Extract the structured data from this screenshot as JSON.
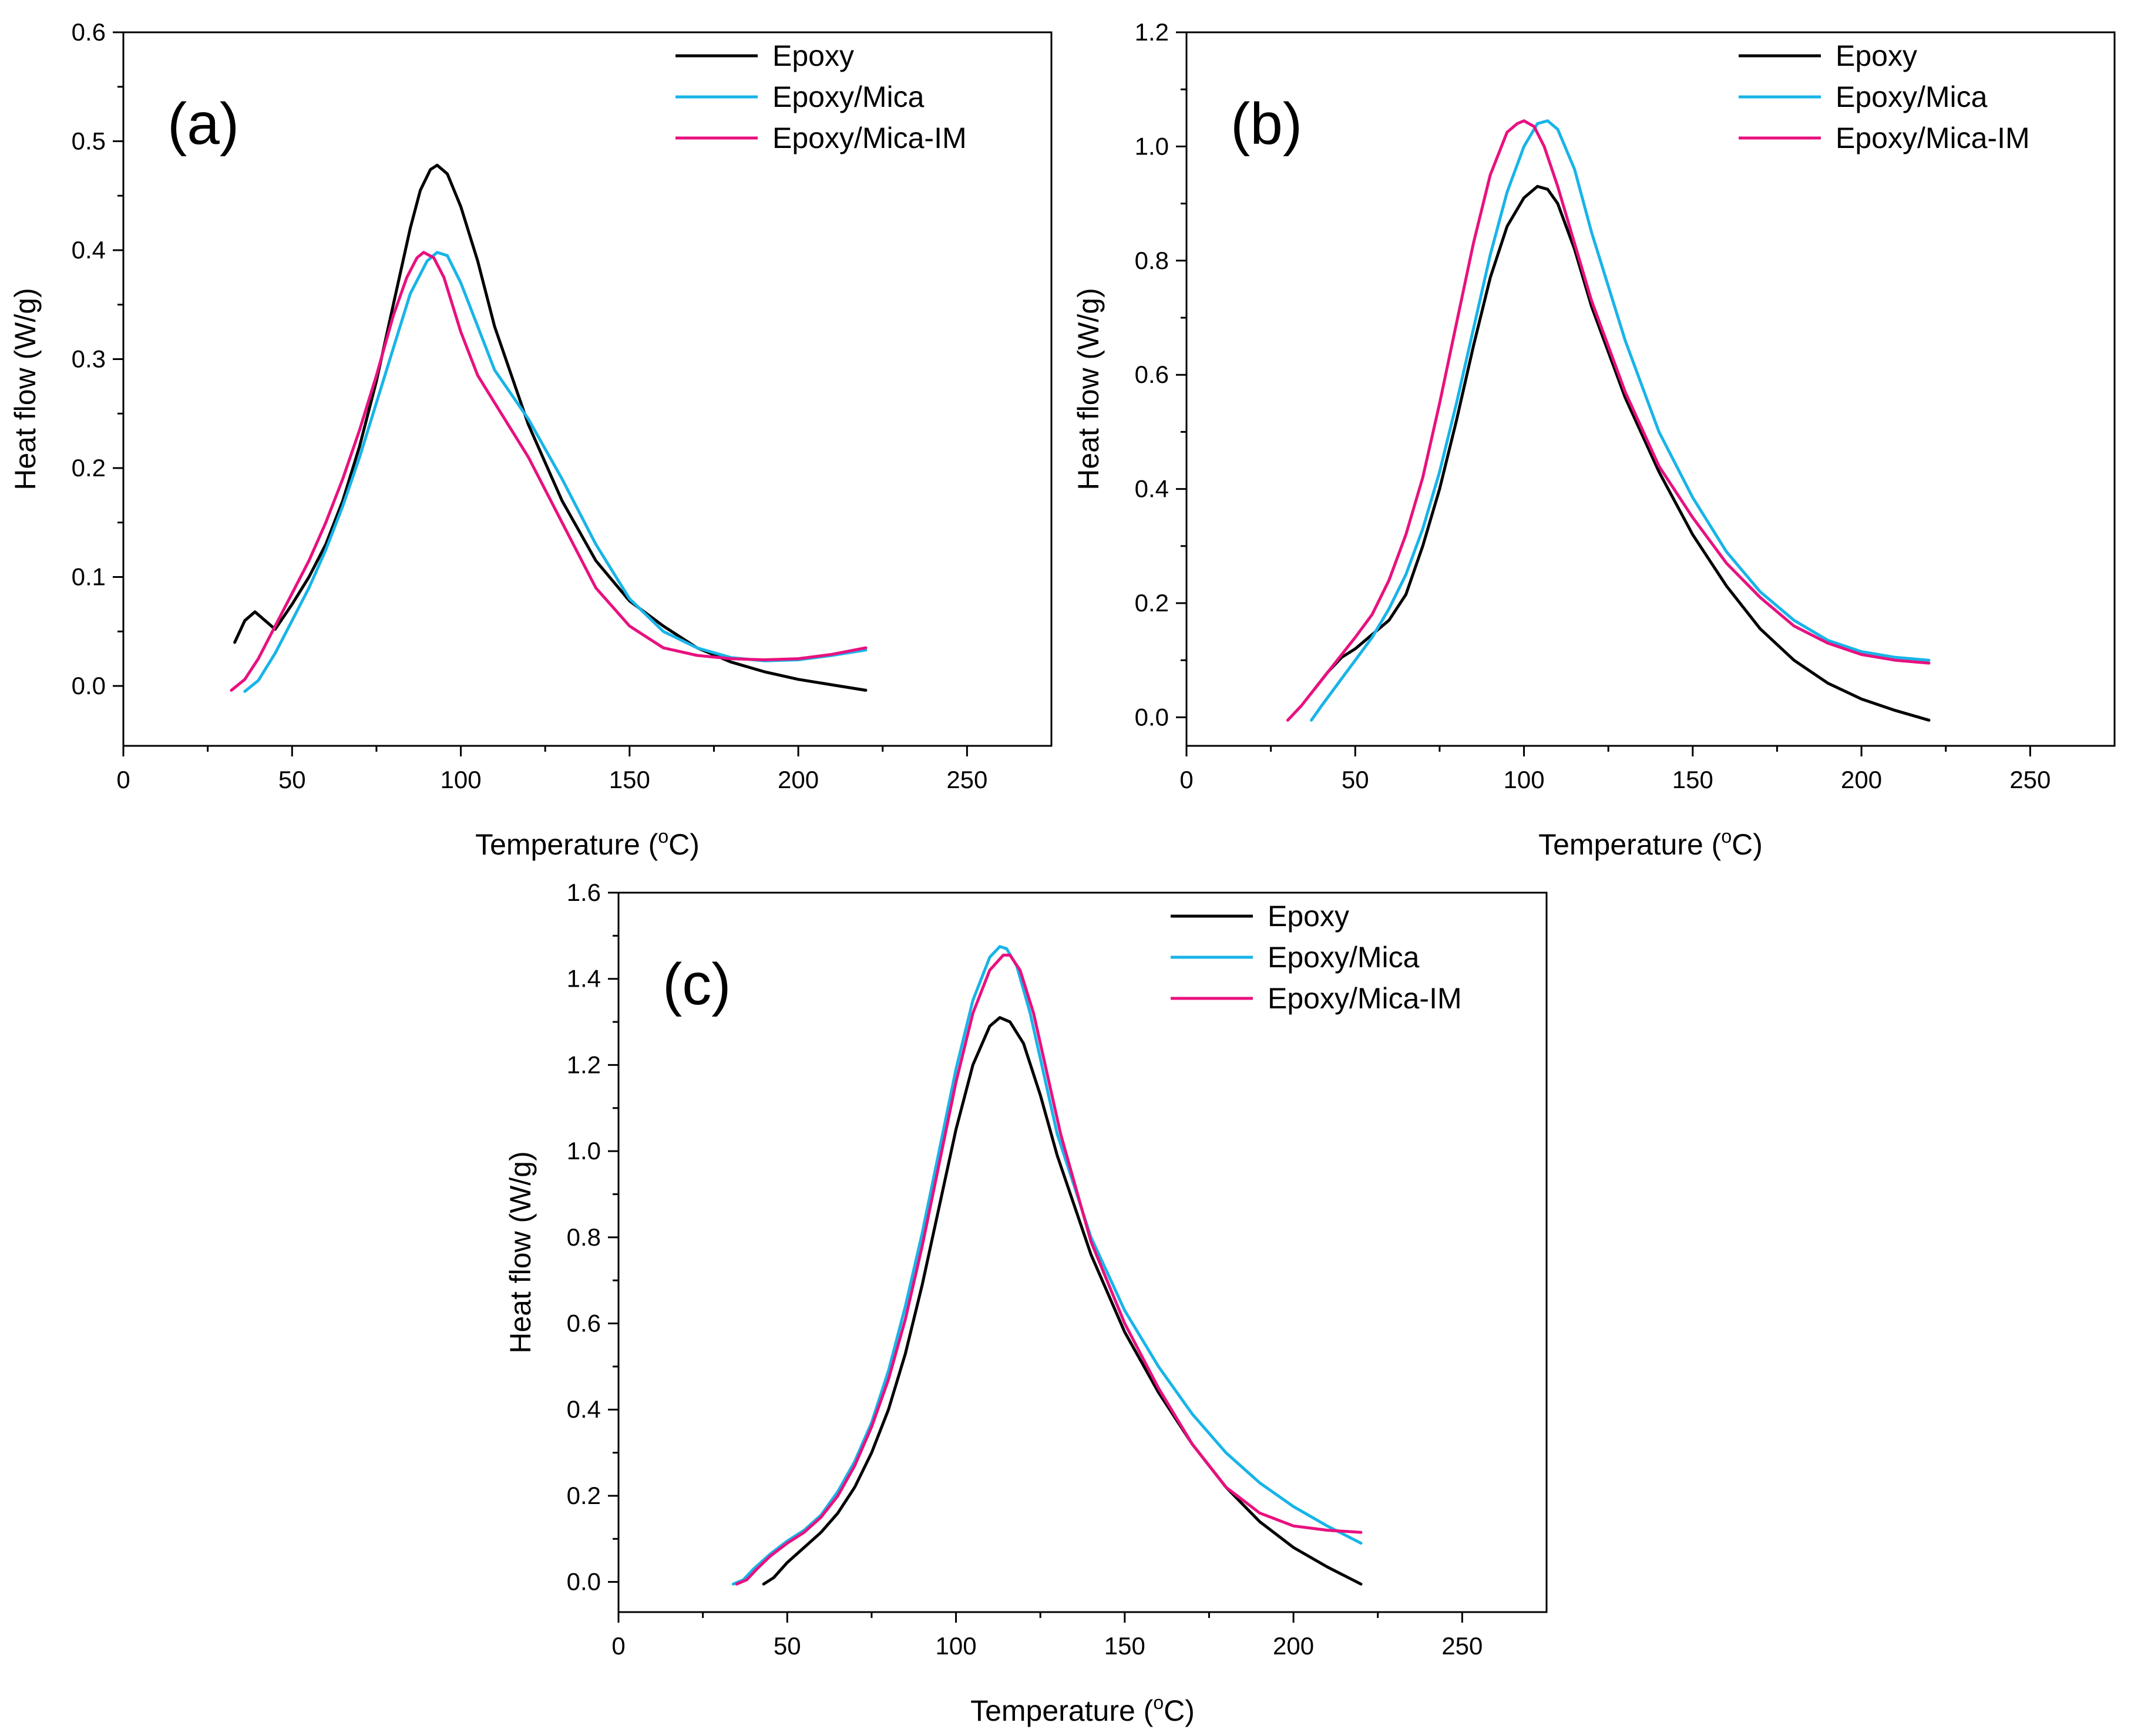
{
  "chart_data": [
    {
      "type": "line",
      "panel_label": "(a)",
      "xlabel": "Temperature (",
      "xlabel_sup": "o",
      "xlabel_end": "C)",
      "ylabel": "Heat flow (W/g)",
      "xlim": [
        0,
        275
      ],
      "ylim": [
        -0.055,
        0.6
      ],
      "xticks": [
        0,
        50,
        100,
        150,
        200,
        250
      ],
      "yticks": [
        0.0,
        0.1,
        0.2,
        0.3,
        0.4,
        0.5,
        0.6
      ],
      "ytick_labels": [
        "0.0",
        "0.1",
        "0.2",
        "0.3",
        "0.4",
        "0.5",
        "0.6"
      ],
      "xtick_labels": [
        "0",
        "50",
        "100",
        "150",
        "200",
        "250"
      ],
      "legend": "top-right",
      "series": [
        {
          "name": "Epoxy",
          "color": "#000000",
          "x": [
            33,
            36,
            39,
            42,
            45,
            50,
            55,
            60,
            65,
            70,
            75,
            80,
            85,
            88,
            91,
            93,
            96,
            100,
            105,
            110,
            120,
            130,
            140,
            150,
            160,
            170,
            180,
            190,
            200,
            210,
            220
          ],
          "y": [
            0.04,
            0.06,
            0.068,
            0.06,
            0.052,
            0.075,
            0.1,
            0.13,
            0.17,
            0.22,
            0.28,
            0.35,
            0.42,
            0.455,
            0.474,
            0.478,
            0.47,
            0.44,
            0.39,
            0.33,
            0.24,
            0.17,
            0.115,
            0.078,
            0.055,
            0.035,
            0.022,
            0.013,
            0.006,
            0.001,
            -0.004
          ]
        },
        {
          "name": "Epoxy/Mica",
          "color": "#18b4e8",
          "x": [
            36,
            40,
            45,
            50,
            55,
            60,
            65,
            70,
            75,
            80,
            85,
            90,
            93,
            96,
            100,
            105,
            110,
            120,
            130,
            140,
            150,
            160,
            170,
            180,
            190,
            200,
            210,
            220
          ],
          "y": [
            -0.005,
            0.005,
            0.03,
            0.06,
            0.09,
            0.125,
            0.165,
            0.21,
            0.26,
            0.31,
            0.36,
            0.39,
            0.398,
            0.395,
            0.37,
            0.33,
            0.29,
            0.245,
            0.19,
            0.13,
            0.08,
            0.05,
            0.035,
            0.026,
            0.023,
            0.024,
            0.028,
            0.033
          ]
        },
        {
          "name": "Epoxy/Mica-IM",
          "color": "#e8117f",
          "x": [
            32,
            36,
            40,
            45,
            50,
            55,
            60,
            65,
            70,
            75,
            80,
            84,
            87,
            89,
            92,
            95,
            100,
            105,
            110,
            120,
            130,
            140,
            150,
            160,
            170,
            180,
            190,
            200,
            210,
            220
          ],
          "y": [
            -0.004,
            0.006,
            0.025,
            0.055,
            0.085,
            0.115,
            0.15,
            0.19,
            0.235,
            0.285,
            0.34,
            0.375,
            0.393,
            0.398,
            0.393,
            0.375,
            0.325,
            0.285,
            0.26,
            0.21,
            0.15,
            0.09,
            0.055,
            0.035,
            0.028,
            0.025,
            0.024,
            0.025,
            0.029,
            0.035
          ]
        }
      ]
    },
    {
      "type": "line",
      "panel_label": "(b)",
      "xlabel": "Temperature (",
      "xlabel_sup": "o",
      "xlabel_end": "C)",
      "ylabel": "Heat flow (W/g)",
      "xlim": [
        0,
        275
      ],
      "ylim": [
        -0.05,
        1.2
      ],
      "xticks": [
        0,
        50,
        100,
        150,
        200,
        250
      ],
      "yticks": [
        0.0,
        0.2,
        0.4,
        0.6,
        0.8,
        1.0,
        1.2
      ],
      "ytick_labels": [
        "0.0",
        "0.2",
        "0.4",
        "0.6",
        "0.8",
        "1.0",
        "1.2"
      ],
      "xtick_labels": [
        "0",
        "50",
        "100",
        "150",
        "200",
        "250"
      ],
      "legend": "top-right",
      "series": [
        {
          "name": "Epoxy",
          "color": "#000000",
          "x": [
            38,
            42,
            46,
            50,
            55,
            60,
            65,
            70,
            75,
            80,
            85,
            90,
            95,
            100,
            104,
            107,
            110,
            115,
            120,
            130,
            140,
            150,
            160,
            170,
            180,
            190,
            200,
            210,
            220
          ],
          "y": [
            0.05,
            0.08,
            0.105,
            0.12,
            0.145,
            0.17,
            0.215,
            0.3,
            0.4,
            0.52,
            0.65,
            0.77,
            0.86,
            0.91,
            0.93,
            0.925,
            0.9,
            0.82,
            0.72,
            0.56,
            0.43,
            0.32,
            0.23,
            0.155,
            0.1,
            0.06,
            0.032,
            0.012,
            -0.005
          ]
        },
        {
          "name": "Epoxy/Mica",
          "color": "#18b4e8",
          "x": [
            37,
            40,
            45,
            50,
            55,
            60,
            65,
            70,
            75,
            80,
            85,
            90,
            95,
            100,
            104,
            107,
            110,
            115,
            120,
            130,
            140,
            150,
            160,
            170,
            180,
            190,
            200,
            210,
            220
          ],
          "y": [
            -0.005,
            0.02,
            0.06,
            0.1,
            0.14,
            0.19,
            0.25,
            0.33,
            0.43,
            0.55,
            0.68,
            0.81,
            0.92,
            1.0,
            1.04,
            1.045,
            1.03,
            0.96,
            0.85,
            0.66,
            0.5,
            0.385,
            0.29,
            0.22,
            0.17,
            0.135,
            0.115,
            0.105,
            0.1
          ]
        },
        {
          "name": "Epoxy/Mica-IM",
          "color": "#e8117f",
          "x": [
            30,
            34,
            38,
            42,
            46,
            50,
            55,
            60,
            65,
            70,
            75,
            80,
            85,
            90,
            95,
            98,
            100,
            103,
            106,
            110,
            115,
            120,
            130,
            140,
            150,
            160,
            170,
            180,
            190,
            200,
            210,
            220
          ],
          "y": [
            -0.005,
            0.02,
            0.05,
            0.08,
            0.11,
            0.14,
            0.18,
            0.24,
            0.32,
            0.42,
            0.55,
            0.69,
            0.83,
            0.95,
            1.025,
            1.04,
            1.045,
            1.035,
            1.0,
            0.93,
            0.83,
            0.73,
            0.57,
            0.44,
            0.35,
            0.27,
            0.21,
            0.16,
            0.13,
            0.11,
            0.1,
            0.095
          ]
        }
      ]
    },
    {
      "type": "line",
      "panel_label": "(c)",
      "xlabel": "Temperature (",
      "xlabel_sup": "o",
      "xlabel_end": "C)",
      "ylabel": "Heat flow (W/g)",
      "xlim": [
        0,
        275
      ],
      "ylim": [
        -0.07,
        1.6
      ],
      "xticks": [
        0,
        50,
        100,
        150,
        200,
        250
      ],
      "yticks": [
        0.0,
        0.2,
        0.4,
        0.6,
        0.8,
        1.0,
        1.2,
        1.4,
        1.6
      ],
      "ytick_labels": [
        "0.0",
        "0.2",
        "0.4",
        "0.6",
        "0.8",
        "1.0",
        "1.2",
        "1.4",
        "1.6"
      ],
      "xtick_labels": [
        "0",
        "50",
        "100",
        "150",
        "200",
        "250"
      ],
      "legend": "top-right",
      "series": [
        {
          "name": "Epoxy",
          "color": "#000000",
          "x": [
            43,
            46,
            50,
            55,
            60,
            65,
            70,
            75,
            80,
            85,
            90,
            95,
            100,
            105,
            110,
            113,
            116,
            120,
            125,
            130,
            140,
            150,
            160,
            170,
            180,
            190,
            200,
            210,
            220
          ],
          "y": [
            -0.005,
            0.01,
            0.045,
            0.08,
            0.115,
            0.16,
            0.22,
            0.3,
            0.4,
            0.53,
            0.69,
            0.87,
            1.05,
            1.2,
            1.29,
            1.31,
            1.3,
            1.25,
            1.13,
            0.99,
            0.76,
            0.58,
            0.44,
            0.32,
            0.22,
            0.14,
            0.08,
            0.035,
            -0.005
          ]
        },
        {
          "name": "Epoxy/Mica",
          "color": "#18b4e8",
          "x": [
            34,
            37,
            40,
            45,
            50,
            55,
            60,
            65,
            70,
            75,
            80,
            85,
            90,
            95,
            100,
            105,
            110,
            113,
            115,
            118,
            122,
            126,
            130,
            140,
            150,
            160,
            170,
            180,
            190,
            200,
            210,
            220
          ],
          "y": [
            -0.005,
            0.005,
            0.03,
            0.065,
            0.095,
            0.12,
            0.155,
            0.21,
            0.28,
            0.37,
            0.49,
            0.64,
            0.81,
            1.0,
            1.19,
            1.35,
            1.45,
            1.475,
            1.47,
            1.43,
            1.32,
            1.18,
            1.04,
            0.8,
            0.63,
            0.5,
            0.39,
            0.3,
            0.23,
            0.175,
            0.13,
            0.09
          ]
        },
        {
          "name": "Epoxy/Mica-IM",
          "color": "#e8117f",
          "x": [
            35,
            38,
            41,
            45,
            50,
            55,
            60,
            65,
            70,
            75,
            80,
            85,
            90,
            95,
            100,
            105,
            110,
            114,
            116,
            119,
            123,
            127,
            131,
            140,
            150,
            160,
            170,
            180,
            190,
            200,
            210,
            220
          ],
          "y": [
            -0.005,
            0.005,
            0.03,
            0.06,
            0.09,
            0.115,
            0.15,
            0.2,
            0.27,
            0.36,
            0.47,
            0.61,
            0.78,
            0.97,
            1.16,
            1.32,
            1.42,
            1.455,
            1.455,
            1.42,
            1.32,
            1.18,
            1.04,
            0.79,
            0.6,
            0.45,
            0.32,
            0.22,
            0.16,
            0.13,
            0.12,
            0.115
          ]
        }
      ]
    }
  ]
}
